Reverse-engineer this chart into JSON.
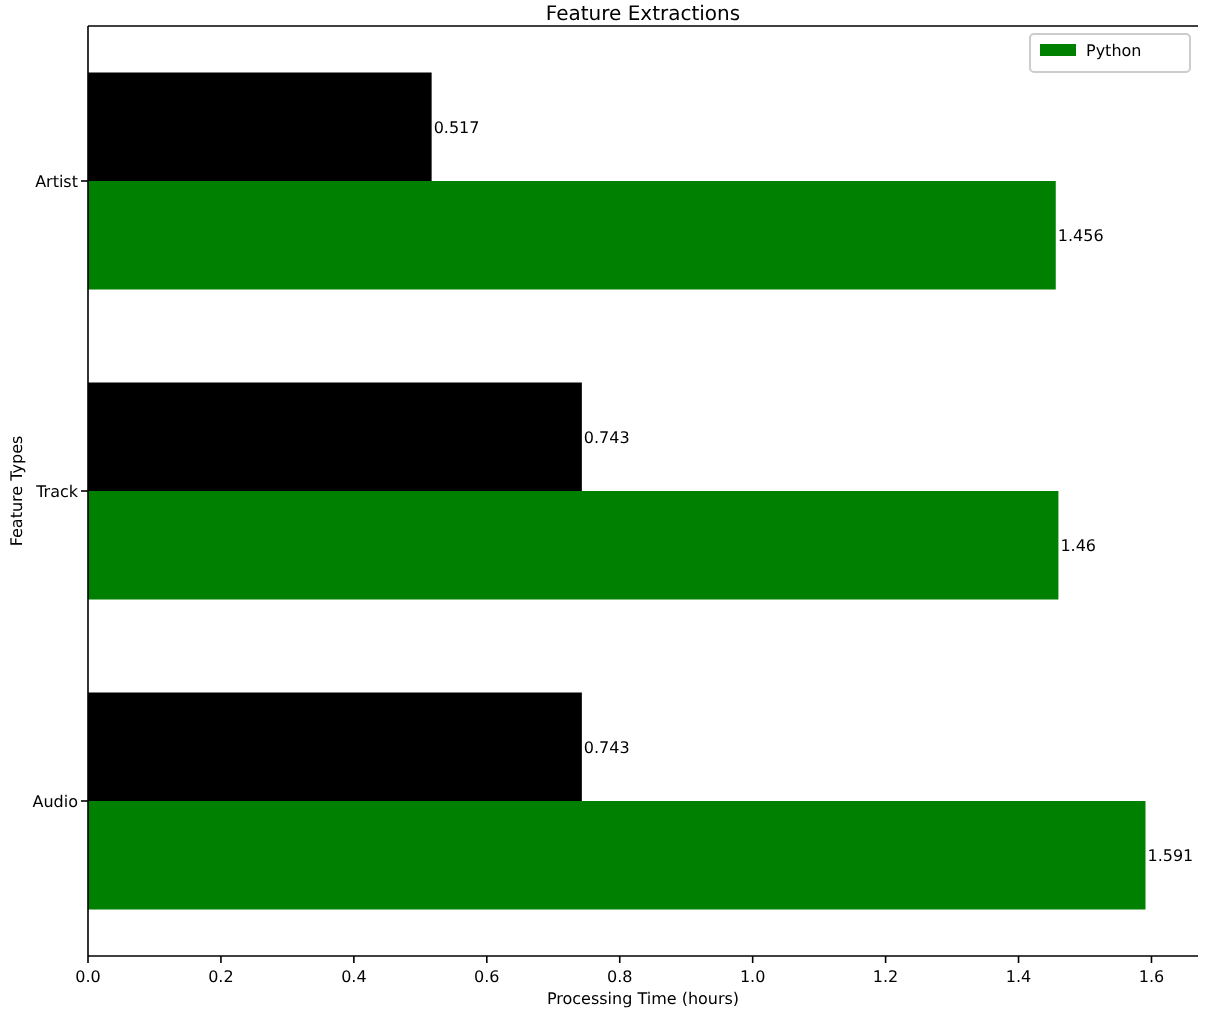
{
  "chart_data": {
    "type": "bar",
    "orientation": "horizontal",
    "title": "Feature Extractions",
    "xlabel": "Processing Time (hours)",
    "ylabel": "Feature Types",
    "categories": [
      "Artist",
      "Track",
      "Audio"
    ],
    "series": [
      {
        "name": "Python",
        "color": "#008000",
        "values": [
          1.456,
          1.46,
          1.591
        ]
      },
      {
        "color": "#000000",
        "values": [
          0.517,
          0.743,
          0.743
        ]
      }
    ],
    "xlim": [
      0,
      1.67
    ],
    "xticks": [
      {
        "value": 0,
        "label": "0.0"
      },
      {
        "value": 0.2,
        "label": "0.2"
      },
      {
        "value": 0.4,
        "label": "0.4"
      },
      {
        "value": 0.6,
        "label": "0.6"
      },
      {
        "value": 0.8,
        "label": "0.8"
      },
      {
        "value": 1,
        "label": "1.0"
      },
      {
        "value": 1.2,
        "label": "1.2"
      },
      {
        "value": 1.4,
        "label": "1.4"
      },
      {
        "value": 1.6,
        "label": "1.6"
      }
    ],
    "data_labels": true,
    "legend": "top right",
    "grid": false
  }
}
